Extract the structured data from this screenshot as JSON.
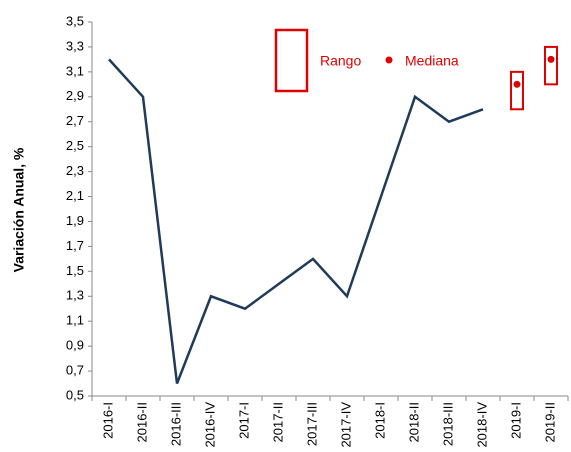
{
  "chart_data": {
    "type": "line",
    "y_label": "Variación Anual, %",
    "categories": [
      "2016-I",
      "2016-II",
      "2016-III",
      "2016-IV",
      "2017-I",
      "2017-II",
      "2017-III",
      "2017-IV",
      "2018-I",
      "2018-II",
      "2018-III",
      "2018-IV",
      "2019-I",
      "2019-II"
    ],
    "values": [
      3.2,
      2.9,
      0.6,
      1.3,
      1.2,
      1.4,
      1.6,
      1.3,
      2.1,
      2.9,
      2.7,
      2.8,
      null,
      null
    ],
    "color": "#1f3a5a",
    "series": [
      {
        "name": "Rango",
        "color": "#e00000",
        "low": [
          null,
          null,
          null,
          null,
          null,
          null,
          null,
          null,
          null,
          null,
          null,
          null,
          2.8,
          3.0
        ],
        "high": [
          null,
          null,
          null,
          null,
          null,
          null,
          null,
          null,
          null,
          null,
          null,
          null,
          3.1,
          3.3
        ]
      },
      {
        "name": "Mediana",
        "color": "#e00000",
        "values": [
          null,
          null,
          null,
          null,
          null,
          null,
          null,
          null,
          null,
          null,
          null,
          null,
          3.0,
          3.2
        ]
      }
    ],
    "ylim": [
      0.5,
      3.5
    ],
    "yticks": [
      {
        "value": 0.5,
        "label": "0,5"
      },
      {
        "value": 0.7,
        "label": "0,7"
      },
      {
        "value": 0.9,
        "label": "0,9"
      },
      {
        "value": 1.1,
        "label": "1,1"
      },
      {
        "value": 1.3,
        "label": "1,3"
      },
      {
        "value": 1.5,
        "label": "1,5"
      },
      {
        "value": 1.7,
        "label": "1,7"
      },
      {
        "value": 1.9,
        "label": "1,9"
      },
      {
        "value": 2.1,
        "label": "2,1"
      },
      {
        "value": 2.3,
        "label": "2,3"
      },
      {
        "value": 2.5,
        "label": "2,5"
      },
      {
        "value": 2.7,
        "label": "2,7"
      },
      {
        "value": 2.9,
        "label": "2,9"
      },
      {
        "value": 3.1,
        "label": "3,1"
      },
      {
        "value": 3.3,
        "label": "3,3"
      },
      {
        "value": 3.5,
        "label": "3,5"
      }
    ],
    "grid": false
  }
}
